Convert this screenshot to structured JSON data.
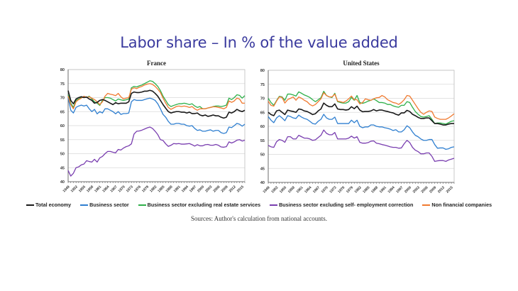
{
  "title": "Labor share – In % of the value added",
  "source_note": "Sources: Author's calculation from national accounts.",
  "legend": [
    {
      "key": "total",
      "label": "Total economy",
      "color": "#1a1a1a"
    },
    {
      "key": "business",
      "label": "Business sector",
      "color": "#2f7fd0"
    },
    {
      "key": "bus_ex_re",
      "label": "Business sector excluding real estate services",
      "color": "#2fb04a"
    },
    {
      "key": "bus_ex_se",
      "label": "Business sector excluding self- employment correction",
      "color": "#7a3fb0"
    },
    {
      "key": "nfc",
      "label": "Non financial companies",
      "color": "#f07a30"
    }
  ],
  "chart_data": [
    {
      "type": "line",
      "title": "France",
      "xlabel": "",
      "ylabel": "",
      "ylim": [
        40,
        80
      ],
      "yticks": [
        40,
        45,
        50,
        55,
        60,
        65,
        70,
        75,
        80
      ],
      "x": [
        1949,
        1950,
        1951,
        1952,
        1953,
        1954,
        1955,
        1956,
        1957,
        1958,
        1959,
        1960,
        1961,
        1962,
        1963,
        1964,
        1965,
        1966,
        1967,
        1968,
        1969,
        1970,
        1971,
        1972,
        1973,
        1974,
        1975,
        1976,
        1977,
        1978,
        1979,
        1980,
        1981,
        1982,
        1983,
        1984,
        1985,
        1986,
        1987,
        1988,
        1989,
        1990,
        1991,
        1992,
        1993,
        1994,
        1995,
        1996,
        1997,
        1998,
        1999,
        2000,
        2001,
        2002,
        2003,
        2004,
        2005,
        2006,
        2007,
        2008,
        2009,
        2010,
        2011,
        2012,
        2013,
        2014,
        2015,
        2016
      ],
      "xtick_labels": [
        "1949",
        "1952",
        "1955",
        "1958",
        "1961",
        "1964",
        "1967",
        "1970",
        "1973",
        "1976",
        "1979",
        "1982",
        "1985",
        "1988",
        "1991",
        "1994",
        "1997",
        "2000",
        "2003",
        "2006",
        "2009",
        "2012",
        "2015"
      ],
      "grid": true,
      "series": [
        {
          "key": "total",
          "name": "Total economy",
          "values": [
            72.5,
            69,
            67.8,
            69.5,
            70,
            70.3,
            70,
            70.2,
            69.5,
            69,
            68,
            68.3,
            69,
            69.3,
            69,
            68.5,
            68,
            67.5,
            68.2,
            67.8,
            68,
            68,
            68,
            68.5,
            71.5,
            72,
            71.8,
            71.8,
            72,
            72.3,
            72.3,
            72.6,
            72.3,
            71.5,
            70.5,
            69,
            67.5,
            66.2,
            65,
            64.5,
            64.8,
            65,
            65,
            64.8,
            64.8,
            64.5,
            64.8,
            64.3,
            64.3,
            64.5,
            63.8,
            63.5,
            63.8,
            63.3,
            63.5,
            63.8,
            63.5,
            63.5,
            63,
            62.7,
            63,
            64.8,
            64.5,
            65,
            65.8,
            65.3,
            65,
            65.5
          ]
        },
        {
          "key": "business",
          "name": "Business sector",
          "values": [
            70,
            65.5,
            64.5,
            66.5,
            67,
            67.3,
            67,
            67.3,
            66,
            65,
            65.8,
            64.2,
            65,
            64.5,
            66,
            66,
            65.5,
            65,
            64.2,
            65,
            64,
            64.3,
            64.3,
            64.5,
            68.5,
            69.3,
            69,
            69,
            69,
            69.3,
            69.6,
            69.8,
            69.5,
            69,
            67.8,
            66,
            64,
            63,
            61.5,
            60.5,
            60.5,
            60.8,
            60.8,
            60.5,
            60.5,
            60,
            59.8,
            60,
            59,
            58.3,
            58.5,
            58,
            58,
            58.3,
            58.5,
            58,
            58.3,
            58.3,
            57.5,
            57.2,
            57.5,
            59.5,
            59.3,
            60,
            60.8,
            60.5,
            59.8,
            60.5
          ]
        },
        {
          "key": "bus_ex_re",
          "name": "Business sector excluding real estate services",
          "values": [
            71,
            68,
            66.5,
            69,
            69.5,
            70,
            70.3,
            70,
            70.5,
            69.5,
            68.5,
            68,
            67.2,
            69,
            70,
            70,
            69.8,
            69.3,
            68.8,
            69.5,
            69.2,
            69,
            69.2,
            69.5,
            73.5,
            74,
            73.8,
            74.2,
            74.5,
            75,
            75.5,
            76,
            75.8,
            75,
            74,
            72.5,
            70.5,
            69,
            67.5,
            66.8,
            67.2,
            67.5,
            67.8,
            67.8,
            68,
            67.8,
            67.5,
            67.8,
            67,
            66.5,
            66.8,
            66,
            66,
            66.3,
            66.5,
            66.8,
            67,
            67,
            66.8,
            67,
            67.3,
            69.8,
            69.3,
            70,
            71,
            70.8,
            69.8,
            70.7
          ]
        },
        {
          "key": "bus_ex_se",
          "name": "Business sector excluding self- employment correction",
          "values": [
            44,
            42,
            43,
            45,
            45.3,
            46,
            46.3,
            47.5,
            47.2,
            47,
            48,
            47,
            48.5,
            49,
            50,
            50.8,
            50.8,
            50.5,
            50.3,
            51.5,
            51.3,
            52,
            52.5,
            52.8,
            53.5,
            57,
            58,
            58.1,
            58.4,
            58.8,
            59.2,
            59.5,
            59,
            58,
            56.8,
            55,
            54.7,
            53.5,
            52.6,
            53,
            53.6,
            53.5,
            53.6,
            53.4,
            53.4,
            53.5,
            53.6,
            53.2,
            52.7,
            53.2,
            52.8,
            52.8,
            53.2,
            53.3,
            53,
            53,
            53.3,
            53,
            52.4,
            52.3,
            52.5,
            54.2,
            53.8,
            54.2,
            54.8,
            55,
            54.5,
            54.8
          ]
        },
        {
          "key": "nfc",
          "name": "Non financial companies",
          "values": [
            70.5,
            67.5,
            66,
            68.5,
            69.3,
            69.8,
            70.5,
            70,
            70.3,
            69.8,
            69.3,
            68.5,
            67.5,
            68.5,
            70.5,
            71.5,
            71.2,
            71,
            70.7,
            71.5,
            70.3,
            69.5,
            69.8,
            70,
            73,
            73.5,
            73.2,
            73.7,
            74,
            74.5,
            74.8,
            75,
            74.7,
            74,
            73,
            71.8,
            69.8,
            68,
            66.5,
            65.8,
            66.3,
            66.8,
            67,
            66.8,
            67,
            66.8,
            66.5,
            66.8,
            66,
            65.5,
            66,
            66,
            66,
            66.3,
            66.5,
            66.7,
            66.7,
            66.5,
            66.3,
            66,
            66.5,
            68.8,
            68.3,
            68.8,
            69.8,
            69.5,
            68,
            68
          ]
        }
      ]
    },
    {
      "type": "line",
      "title": "United States",
      "xlabel": "",
      "ylabel": "",
      "ylim": [
        40,
        80
      ],
      "yticks": [
        40,
        45,
        50,
        55,
        60,
        65,
        70,
        75,
        80
      ],
      "x": [
        1949,
        1950,
        1951,
        1952,
        1953,
        1954,
        1955,
        1956,
        1957,
        1958,
        1959,
        1960,
        1961,
        1962,
        1963,
        1964,
        1965,
        1966,
        1967,
        1968,
        1969,
        1970,
        1971,
        1972,
        1973,
        1974,
        1975,
        1976,
        1977,
        1978,
        1979,
        1980,
        1981,
        1982,
        1983,
        1984,
        1985,
        1986,
        1987,
        1988,
        1989,
        1990,
        1991,
        1992,
        1993,
        1994,
        1995,
        1996,
        1997,
        1998,
        1999,
        2000,
        2001,
        2002,
        2003,
        2004,
        2005,
        2006,
        2007,
        2008,
        2009,
        2010,
        2011,
        2012,
        2013,
        2014,
        2015,
        2016
      ],
      "xtick_labels": [
        "1949",
        "1952",
        "1955",
        "1958",
        "1961",
        "1964",
        "1967",
        "1970",
        "1973",
        "1976",
        "1979",
        "1982",
        "1985",
        "1988",
        "1991",
        "1994",
        "1997",
        "2000",
        "2003",
        "2006",
        "2009",
        "2012",
        "2015"
      ],
      "grid": true,
      "series": [
        {
          "key": "total",
          "name": "Total economy",
          "values": [
            65,
            64.2,
            63.8,
            65.5,
            65.8,
            65,
            64.2,
            65.8,
            65.5,
            65.3,
            65,
            66.2,
            66,
            65.5,
            65.3,
            64.8,
            64.2,
            64.5,
            65.5,
            66.2,
            68.3,
            67.5,
            67,
            67,
            68,
            66.2,
            66,
            66,
            65.8,
            66,
            67,
            66.3,
            67.2,
            65.8,
            65.2,
            65.3,
            65.3,
            65.5,
            66,
            65.5,
            65.8,
            65.8,
            65.5,
            65.3,
            65,
            64.8,
            64.3,
            64,
            64.8,
            64.8,
            65.7,
            65.3,
            64.3,
            63.8,
            63.2,
            62.8,
            62.8,
            63,
            63,
            62,
            61,
            61,
            60.8,
            60.5,
            60.5,
            60.8,
            61,
            61
          ]
        },
        {
          "key": "business",
          "name": "Business sector",
          "values": [
            63.5,
            62.2,
            61.3,
            63,
            63.8,
            63,
            62,
            63.8,
            63.5,
            63,
            62.8,
            64,
            63.3,
            62.8,
            62.5,
            61.8,
            61,
            60.8,
            61.8,
            62.5,
            64.3,
            63,
            62.5,
            62.5,
            63.3,
            61,
            61,
            61,
            61,
            61,
            62.2,
            61.3,
            62.2,
            60,
            59.5,
            59.8,
            59.8,
            60.5,
            60.5,
            60,
            59.8,
            59.8,
            59.5,
            59.3,
            59,
            58.5,
            58.8,
            58,
            58,
            58.8,
            60.2,
            59.5,
            58,
            56.8,
            56.3,
            55.5,
            55,
            55,
            55.3,
            55.3,
            53.5,
            52.2,
            52.3,
            52.3,
            51.8,
            52,
            52.5,
            52.7
          ]
        },
        {
          "key": "bus_ex_re",
          "name": "Business sector excluding real estate services",
          "values": [
            70,
            68.5,
            67.5,
            69.2,
            70.7,
            70.5,
            69.3,
            71.5,
            71.5,
            71.2,
            70.8,
            72.3,
            71.8,
            71.2,
            70.8,
            70.3,
            69.5,
            68.8,
            69.5,
            70.2,
            72.5,
            71,
            70.5,
            70.3,
            71.8,
            68.8,
            68.5,
            68.3,
            68.3,
            68.8,
            70.3,
            69.3,
            71,
            68.5,
            68.2,
            68.5,
            69,
            69.3,
            69.8,
            69.2,
            68.5,
            68.5,
            68.3,
            67.8,
            67.8,
            67.3,
            67,
            66.8,
            67.5,
            67.5,
            68.8,
            68.5,
            66.8,
            65.3,
            64.3,
            63.5,
            63.3,
            63.5,
            63.8,
            62.5,
            61,
            61.2,
            61.2,
            61,
            60.8,
            61.3,
            61.8,
            62
          ]
        },
        {
          "key": "bus_ex_se",
          "name": "Business sector excluding self- employment correction",
          "values": [
            53.2,
            52.7,
            52.5,
            54.5,
            55.3,
            55,
            54.3,
            56.3,
            56.3,
            55.5,
            55.5,
            56.8,
            56.3,
            55.8,
            55.8,
            55.5,
            55,
            55.2,
            56,
            56.8,
            58.7,
            57.5,
            57,
            57,
            57.8,
            55.5,
            55.5,
            55.5,
            55.5,
            55.8,
            56.5,
            55.8,
            56.3,
            54.3,
            54,
            54,
            54.2,
            54.7,
            54.8,
            54,
            53.8,
            53.5,
            53.3,
            53,
            52.7,
            52.5,
            52.5,
            52.2,
            52.3,
            53.8,
            55,
            54.2,
            52.5,
            51.5,
            51,
            50.2,
            50.2,
            50.5,
            50.5,
            49.3,
            47.5,
            47.7,
            47.8,
            47.8,
            47.5,
            48,
            48.3,
            48.6
          ]
        },
        {
          "key": "nfc",
          "name": "Non financial companies",
          "values": [
            69,
            67.5,
            67.2,
            69,
            70.5,
            70.3,
            68.3,
            69.5,
            70,
            70.5,
            69.3,
            70.5,
            70,
            69.3,
            68.8,
            67.8,
            67.3,
            67.8,
            68.8,
            69.8,
            72,
            71,
            70.5,
            70.5,
            71.5,
            69,
            68.8,
            68.5,
            69,
            69.8,
            70.8,
            69.5,
            69.5,
            68,
            68.5,
            69.8,
            69.5,
            69.3,
            69.8,
            70.2,
            70.3,
            71,
            70.5,
            69.5,
            69,
            68.5,
            68.3,
            67.8,
            68.5,
            69.5,
            71,
            70.8,
            69.3,
            67.8,
            66.3,
            65,
            64.3,
            65,
            65.5,
            65.3,
            63.3,
            62.8,
            62.5,
            62.5,
            62.5,
            63,
            63.7,
            64.5
          ]
        }
      ]
    }
  ]
}
